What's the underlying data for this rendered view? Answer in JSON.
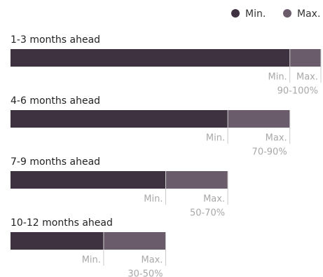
{
  "chart_data": {
    "type": "range-bar",
    "categories": [
      "1-3 months ahead",
      "4-6 months ahead",
      "7-9 months ahead",
      "10-12 months ahead"
    ],
    "series": [
      {
        "name": "Min.",
        "color": "#3e3140",
        "values": [
          90,
          70,
          50,
          30
        ]
      },
      {
        "name": "Max.",
        "color": "#6b5c6c",
        "values": [
          100,
          90,
          70,
          50
        ],
        "value_labels": [
          "90-100%",
          "70-90%",
          "50-70%",
          "30-50%"
        ]
      }
    ],
    "xlim": [
      0,
      100
    ]
  }
}
